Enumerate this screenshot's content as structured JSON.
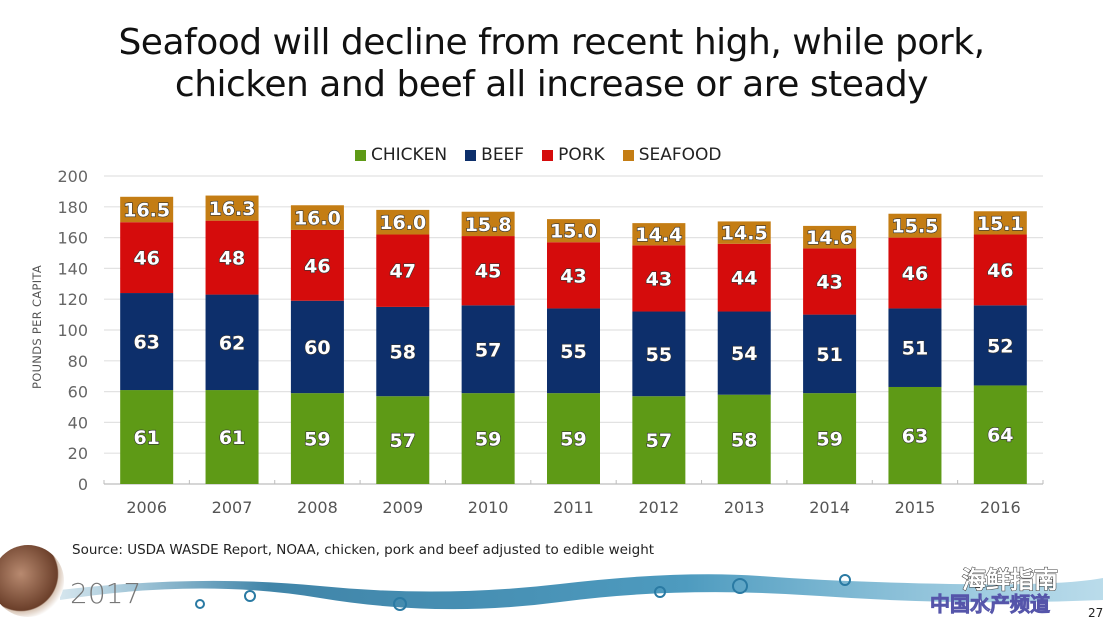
{
  "slide": {
    "title_line1": "Seafood will decline from recent high, while pork,",
    "title_line2": "chicken and beef all increase or are steady",
    "source": "Source: USDA WASDE Report, NOAA, chicken, pork and beef adjusted to edible weight",
    "conference_year": "2017",
    "watermark_line1": "海鲜指南",
    "watermark_line2": "中国水产频道",
    "page_number": "27"
  },
  "colors": {
    "chicken": "#5e9a16",
    "beef": "#0d2f6b",
    "pork": "#d50c0c",
    "seafood": "#c47d14"
  },
  "chart_data": {
    "type": "bar",
    "stacked": true,
    "title": "",
    "xlabel": "",
    "ylabel": "POUNDS PER CAPITA",
    "ylim": [
      0,
      200
    ],
    "yticks": [
      0,
      20,
      40,
      60,
      80,
      100,
      120,
      140,
      160,
      180,
      200
    ],
    "grid": true,
    "legend_position": "top-center",
    "categories": [
      "2006",
      "2007",
      "2008",
      "2009",
      "2010",
      "2011",
      "2012",
      "2013",
      "2014",
      "2015",
      "2016"
    ],
    "series": [
      {
        "name": "CHICKEN",
        "key": "chicken",
        "values": [
          61,
          61,
          59,
          57,
          59,
          59,
          57,
          58,
          59,
          63,
          64
        ],
        "labels": [
          "61",
          "61",
          "59",
          "57",
          "59",
          "59",
          "57",
          "58",
          "59",
          "63",
          "64"
        ]
      },
      {
        "name": "BEEF",
        "key": "beef",
        "values": [
          63,
          62,
          60,
          58,
          57,
          55,
          55,
          54,
          51,
          51,
          52
        ],
        "labels": [
          "63",
          "62",
          "60",
          "58",
          "57",
          "55",
          "55",
          "54",
          "51",
          "51",
          "52"
        ]
      },
      {
        "name": "PORK",
        "key": "pork",
        "values": [
          46,
          48,
          46,
          47,
          45,
          43,
          43,
          44,
          43,
          46,
          46
        ],
        "labels": [
          "46",
          "48",
          "46",
          "47",
          "45",
          "43",
          "43",
          "44",
          "43",
          "46",
          "46"
        ]
      },
      {
        "name": "SEAFOOD",
        "key": "seafood",
        "values": [
          16.5,
          16.3,
          16.0,
          16.0,
          15.8,
          15.0,
          14.4,
          14.5,
          14.6,
          15.5,
          15.1
        ],
        "labels": [
          "16.5",
          "16.3",
          "16.0",
          "16.0",
          "15.8",
          "15.0",
          "14.4",
          "14.5",
          "14.6",
          "15.5",
          "15.1"
        ]
      }
    ]
  }
}
